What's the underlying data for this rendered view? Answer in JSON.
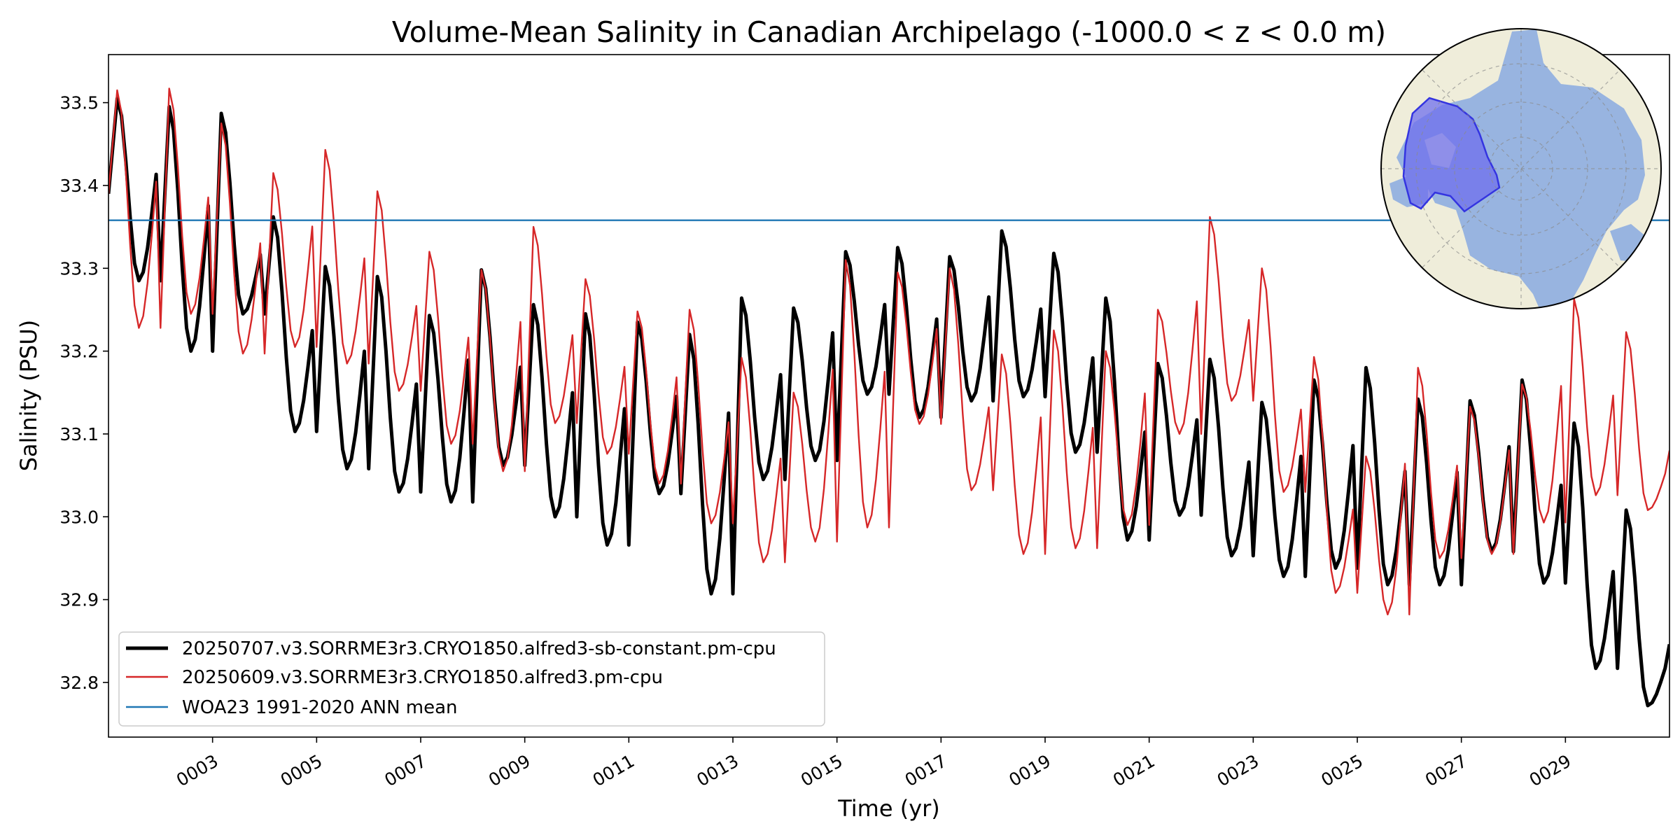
{
  "chart_data": {
    "type": "line",
    "title": "Volume-Mean Salinity in Canadian Archipelago (-1000.0 < z < 0.0 m)",
    "xlabel": "Time (yr)",
    "ylabel": "Salinity (PSU)",
    "xlim": [
      1.0,
      31.0
    ],
    "ylim": [
      32.734,
      33.558
    ],
    "x_ticks": [
      3,
      5,
      7,
      9,
      11,
      13,
      15,
      17,
      19,
      21,
      23,
      25,
      27,
      29
    ],
    "x_tick_labels": [
      "0003",
      "0005",
      "0007",
      "0009",
      "0011",
      "0013",
      "0015",
      "0017",
      "0019",
      "0021",
      "0023",
      "0025",
      "0027",
      "0029"
    ],
    "y_ticks": [
      32.8,
      32.9,
      33.0,
      33.1,
      33.2,
      33.3,
      33.4,
      33.5
    ],
    "y_tick_labels": [
      "32.8",
      "32.9",
      "33.0",
      "33.1",
      "33.2",
      "33.3",
      "33.4",
      "33.5"
    ],
    "grid": false,
    "legend_position": "lower-left",
    "series": [
      {
        "name": "20250707.v3.SORRME3r3.CRYO1850.alfred3-sb-constant.pm-cpu",
        "color": "#000000",
        "style": "thick",
        "annual_max": [
          33.505,
          33.495,
          33.487,
          33.362,
          33.302,
          33.29,
          33.243,
          33.298,
          33.256,
          33.245,
          33.235,
          33.22,
          33.264,
          33.252,
          33.32,
          33.325,
          33.314,
          33.345,
          33.318,
          33.264,
          33.185,
          33.19,
          33.138,
          33.165,
          33.18,
          33.142,
          33.14,
          33.165,
          33.113,
          33.008
        ],
        "annual_min": [
          33.285,
          33.2,
          33.245,
          33.103,
          33.058,
          33.03,
          33.018,
          33.062,
          33.0,
          32.966,
          33.028,
          32.907,
          33.045,
          33.068,
          33.148,
          33.12,
          33.14,
          33.145,
          33.078,
          32.972,
          33.002,
          32.953,
          32.928,
          32.938,
          32.918,
          32.918,
          32.958,
          32.92,
          32.817,
          32.772
        ],
        "start": 33.39,
        "end": 32.846
      },
      {
        "name": "20250609.v3.SORRME3r3.CRYO1850.alfred3.pm-cpu",
        "color": "#d62728",
        "style": "thin",
        "annual_max": [
          33.515,
          33.517,
          33.475,
          33.415,
          33.443,
          33.393,
          33.32,
          33.298,
          33.35,
          33.287,
          33.248,
          33.25,
          33.192,
          33.15,
          33.31,
          33.295,
          33.3,
          33.196,
          33.225,
          33.2,
          33.25,
          33.362,
          33.3,
          33.193,
          33.073,
          33.18,
          33.133,
          33.16,
          33.263,
          33.223
        ],
        "annual_min": [
          33.228,
          33.245,
          33.197,
          33.205,
          33.185,
          33.152,
          33.088,
          33.055,
          33.113,
          33.076,
          33.04,
          32.992,
          32.945,
          32.97,
          32.987,
          33.112,
          33.032,
          32.955,
          32.962,
          32.99,
          33.1,
          33.14,
          33.03,
          32.908,
          32.882,
          32.95,
          32.955,
          32.993,
          33.026,
          33.008
        ],
        "start": 33.39,
        "end": 33.08
      },
      {
        "name": "WOA23 1991-2020 ANN mean",
        "color": "#1f77b4",
        "style": "hline",
        "value": 33.358
      }
    ]
  },
  "inset": {
    "land_color": "#efedda",
    "ocean_color": "#98b4e0",
    "region_color": "#6f6fee"
  }
}
